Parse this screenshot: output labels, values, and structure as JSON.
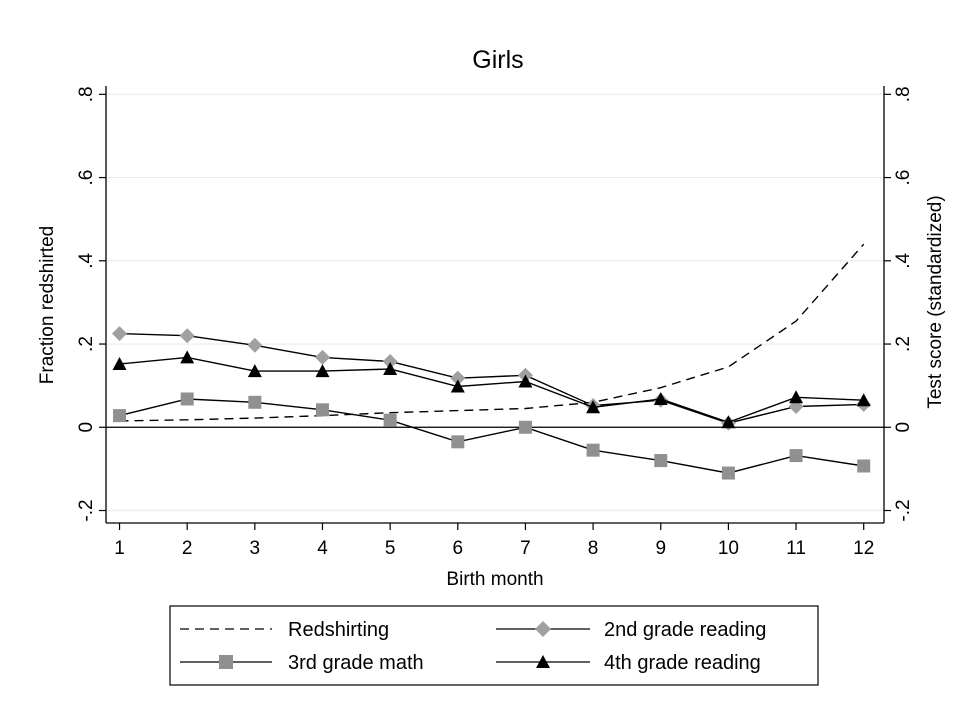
{
  "chart_data": {
    "type": "line",
    "title": "Girls",
    "xlabel": "Birth month",
    "ylabel_left": "Fraction redshirted",
    "ylabel_right": "Test score (standardized)",
    "x": [
      1,
      2,
      3,
      4,
      5,
      6,
      7,
      8,
      9,
      10,
      11,
      12
    ],
    "x_ticks": [
      "1",
      "2",
      "3",
      "4",
      "5",
      "6",
      "7",
      "8",
      "9",
      "10",
      "11",
      "12"
    ],
    "y_ticks": [
      "-.2",
      "0",
      ".2",
      ".4",
      ".6",
      ".8"
    ],
    "y_tick_values": [
      -0.2,
      0,
      0.2,
      0.4,
      0.6,
      0.8
    ],
    "ylim": [
      -0.23,
      0.82
    ],
    "xlim": [
      0.8,
      12.3
    ],
    "grid": true,
    "legend_position": "bottom",
    "series": [
      {
        "name": "Redshirting",
        "axis": "left",
        "style": "dashed",
        "marker": "none",
        "color": "#000000",
        "values": [
          0.015,
          0.018,
          0.022,
          0.028,
          0.035,
          0.04,
          0.045,
          0.06,
          0.095,
          0.145,
          0.255,
          0.44
        ]
      },
      {
        "name": "2nd grade reading",
        "axis": "right",
        "style": "solid",
        "marker": "diamond",
        "color": "#000000",
        "marker_color": "#a0a0a0",
        "values": [
          0.225,
          0.22,
          0.197,
          0.168,
          0.158,
          0.118,
          0.125,
          0.052,
          0.065,
          0.01,
          0.05,
          0.055
        ]
      },
      {
        "name": "3rd grade math",
        "axis": "right",
        "style": "solid",
        "marker": "square",
        "color": "#000000",
        "marker_color": "#909090",
        "values": [
          0.028,
          0.068,
          0.06,
          0.042,
          0.017,
          -0.035,
          0.0,
          -0.055,
          -0.08,
          -0.11,
          -0.068,
          -0.093
        ]
      },
      {
        "name": "4th grade reading",
        "axis": "right",
        "style": "solid",
        "marker": "triangle",
        "color": "#000000",
        "marker_color": "#000000",
        "values": [
          0.152,
          0.168,
          0.135,
          0.135,
          0.14,
          0.098,
          0.11,
          0.048,
          0.068,
          0.012,
          0.072,
          0.065
        ]
      }
    ]
  }
}
